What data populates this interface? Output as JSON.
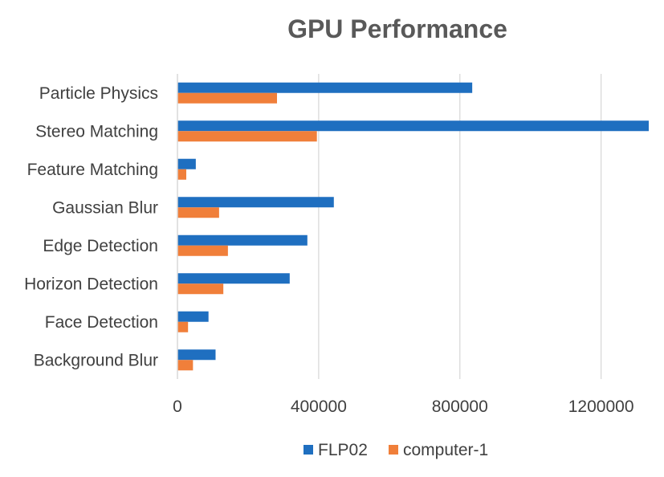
{
  "chart_data": {
    "type": "bar",
    "orientation": "horizontal",
    "title": "GPU Performance",
    "xlabel": "",
    "ylabel": "",
    "categories": [
      "Particle Physics",
      "Stereo Matching",
      "Feature Matching",
      "Gaussian Blur",
      "Edge Detection",
      "Horizon Detection",
      "Face Detection",
      "Background Blur"
    ],
    "series": [
      {
        "name": "FLP02",
        "color": "#1F6FC0",
        "values": [
          835000,
          1335000,
          52000,
          443000,
          368000,
          318000,
          88000,
          108000
        ]
      },
      {
        "name": "computer-1",
        "color": "#F07F3A",
        "values": [
          282000,
          395000,
          25000,
          118000,
          143000,
          130000,
          30000,
          44000
        ]
      }
    ],
    "xlim": [
      0,
      1335000
    ],
    "xticks": [
      0,
      400000,
      800000,
      1200000
    ],
    "xtick_labels": [
      "0",
      "400000",
      "800000",
      "1200000"
    ],
    "grid": true,
    "legend_position": "bottom"
  }
}
